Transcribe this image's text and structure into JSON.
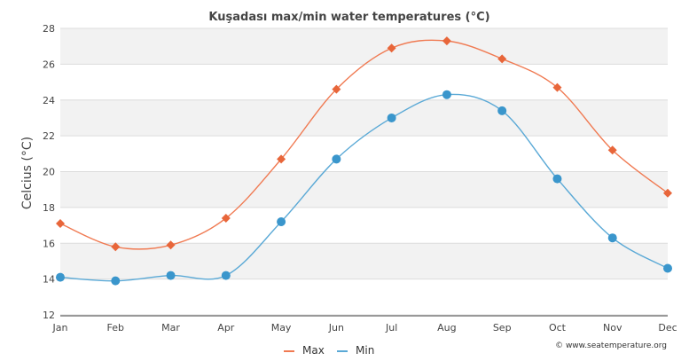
{
  "chart_data": {
    "type": "line",
    "title": "Kuşadası max/min water temperatures (°C)",
    "xlabel": "",
    "ylabel": "Celcius (°C)",
    "ylim": [
      12,
      28
    ],
    "yticks": [
      12,
      14,
      16,
      18,
      20,
      22,
      24,
      26,
      28
    ],
    "categories": [
      "Jan",
      "Feb",
      "Mar",
      "Apr",
      "May",
      "Jun",
      "Jul",
      "Aug",
      "Sep",
      "Oct",
      "Nov",
      "Dec"
    ],
    "series": [
      {
        "name": "Max",
        "color": "#f07a52",
        "marker_color": "#e8663a",
        "marker": "diamond",
        "values": [
          17.1,
          15.8,
          15.9,
          17.4,
          20.7,
          24.6,
          26.9,
          27.3,
          26.3,
          24.7,
          21.2,
          18.8
        ]
      },
      {
        "name": "Min",
        "color": "#5aa9d6",
        "marker_color": "#3a96cc",
        "marker": "circle",
        "values": [
          14.1,
          13.9,
          14.2,
          14.2,
          17.2,
          20.7,
          23.0,
          24.3,
          23.4,
          19.6,
          16.3,
          14.6
        ]
      }
    ],
    "legend": {
      "position": "bottom-center"
    },
    "grid": true
  },
  "credit": "© www.seatemperature.org"
}
